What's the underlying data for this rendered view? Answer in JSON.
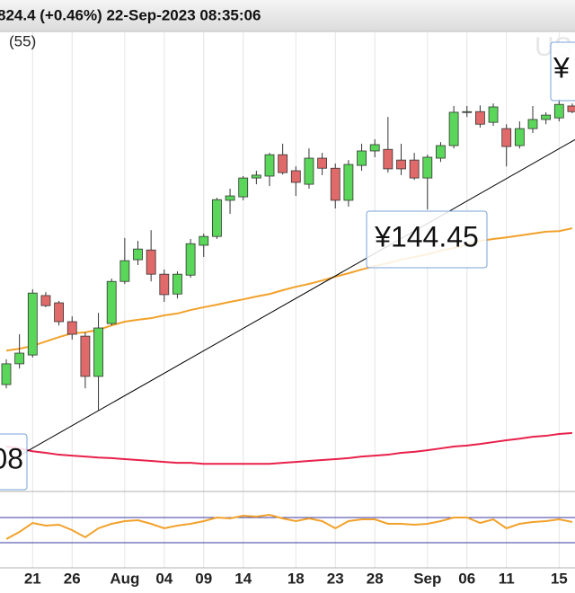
{
  "chart_data": {
    "type": "candlestick",
    "title": "824.4 (+0.46%) 22-Sep-2023 08:35:06",
    "subtitle": "(55)",
    "watermark": "US",
    "categories": [
      null,
      null,
      "21",
      null,
      null,
      "26",
      null,
      null,
      null,
      "Aug",
      null,
      null,
      "04",
      null,
      null,
      "09",
      null,
      null,
      "14",
      null,
      null,
      null,
      "18",
      null,
      null,
      "23",
      null,
      null,
      "28",
      null,
      null,
      null,
      "Sep",
      null,
      null,
      "06",
      null,
      null,
      "11",
      null,
      null,
      null,
      "15",
      null
    ],
    "open": [
      138.88,
      139.54,
      139.82,
      141.71,
      141.48,
      140.88,
      140.42,
      139.14,
      140.82,
      142.16,
      142.85,
      143.16,
      142.39,
      141.76,
      142.36,
      143.31,
      143.59,
      144.74,
      144.85,
      145.45,
      145.51,
      146.19,
      145.68,
      145.25,
      146.08,
      145.76,
      144.74,
      145.85,
      146.31,
      146.36,
      146.02,
      146.02,
      145.45,
      146.08,
      146.48,
      147.54,
      147.56,
      147.22,
      147.02,
      146.48,
      147.02,
      147.31,
      147.36,
      147.74
    ],
    "high": [
      139.68,
      140.48,
      141.91,
      141.82,
      141.54,
      141.05,
      140.54,
      141.16,
      142.25,
      143.54,
      143.45,
      143.79,
      142.54,
      142.48,
      143.51,
      143.68,
      144.82,
      145.11,
      145.51,
      145.68,
      146.25,
      146.54,
      145.82,
      146.39,
      146.25,
      145.91,
      146.02,
      146.54,
      146.68,
      147.39,
      146.54,
      146.25,
      146.19,
      146.59,
      147.74,
      147.74,
      147.76,
      147.82,
      147.16,
      147.25,
      147.74,
      147.54,
      147.96,
      147.82
    ],
    "low": [
      138.76,
      139.39,
      139.74,
      141.34,
      140.76,
      140.31,
      138.76,
      138.05,
      140.76,
      142.08,
      142.68,
      142.16,
      141.51,
      141.62,
      142.28,
      142.94,
      143.51,
      144.31,
      144.74,
      145.25,
      145.19,
      145.56,
      144.88,
      145.11,
      145.54,
      144.48,
      144.54,
      145.68,
      146.11,
      145.62,
      145.54,
      145.39,
      144.45,
      145.96,
      146.39,
      147.39,
      147.05,
      147.11,
      145.82,
      146.39,
      146.88,
      147.16,
      147.25,
      147.51
    ],
    "close": [
      139.54,
      139.88,
      141.79,
      141.39,
      140.88,
      140.48,
      139.14,
      140.68,
      142.16,
      142.82,
      143.19,
      142.39,
      141.74,
      142.39,
      143.36,
      143.59,
      144.76,
      144.88,
      145.45,
      145.54,
      146.19,
      145.62,
      145.31,
      146.08,
      145.76,
      144.74,
      145.88,
      146.31,
      146.51,
      145.74,
      145.74,
      145.45,
      146.11,
      146.48,
      147.54,
      147.56,
      147.16,
      147.71,
      146.45,
      147.02,
      147.31,
      147.45,
      147.79,
      147.56
    ],
    "up_color": "#5ad65a",
    "down_color": "#e06a6a",
    "ylim": [
      135.48,
      150.11
    ],
    "overlays": [
      {
        "color": "#f2a12a",
        "values": [
          139.96,
          140.02,
          140.11,
          140.25,
          140.39,
          140.51,
          140.54,
          140.62,
          140.76,
          140.88,
          140.94,
          140.99,
          141.08,
          141.14,
          141.25,
          141.34,
          141.42,
          141.51,
          141.59,
          141.68,
          141.76,
          141.88,
          141.99,
          142.08,
          142.19,
          142.31,
          142.42,
          142.54,
          142.65,
          142.74,
          142.85,
          142.94,
          143.02,
          143.14,
          143.22,
          143.34,
          143.45,
          143.51,
          143.56,
          143.62,
          143.68,
          143.74,
          143.76,
          143.85
        ]
      },
      {
        "color": "#e8204a",
        "values": [
          136.91,
          136.85,
          136.76,
          136.71,
          136.65,
          136.62,
          136.59,
          136.56,
          136.54,
          136.51,
          136.48,
          136.45,
          136.42,
          136.39,
          136.39,
          136.36,
          136.36,
          136.36,
          136.36,
          136.36,
          136.36,
          136.39,
          136.42,
          136.45,
          136.48,
          136.51,
          136.54,
          136.59,
          136.62,
          136.65,
          136.71,
          136.74,
          136.79,
          136.85,
          136.91,
          136.94,
          136.99,
          137.05,
          137.11,
          137.16,
          137.22,
          137.25,
          137.31,
          137.34
        ]
      }
    ],
    "trendline": {
      "color": "#000000",
      "points": [
        [
          7,
          138.05
        ],
        [
          43,
          146.62
        ]
      ]
    },
    "oscillator": {
      "color": "#f2a12a",
      "level_color": "#3a3aa0",
      "levels": [
        70,
        30
      ],
      "ylim": [
        -10,
        110
      ],
      "values": [
        35.7,
        47.1,
        61.4,
        57.1,
        58.6,
        50,
        38.6,
        52.9,
        60,
        64.3,
        65.7,
        60,
        52.9,
        57.1,
        60,
        64.3,
        70,
        68.6,
        72.9,
        71.4,
        74.3,
        68.6,
        64.3,
        68.6,
        64.3,
        52.9,
        64.3,
        67.1,
        67.1,
        60,
        60,
        58.6,
        60,
        64.3,
        70,
        70,
        61.4,
        67.1,
        52.9,
        60,
        62.9,
        64.3,
        67.1,
        62.9
      ]
    },
    "annotations": [
      "¥144.45",
      "08",
      "¥"
    ]
  }
}
